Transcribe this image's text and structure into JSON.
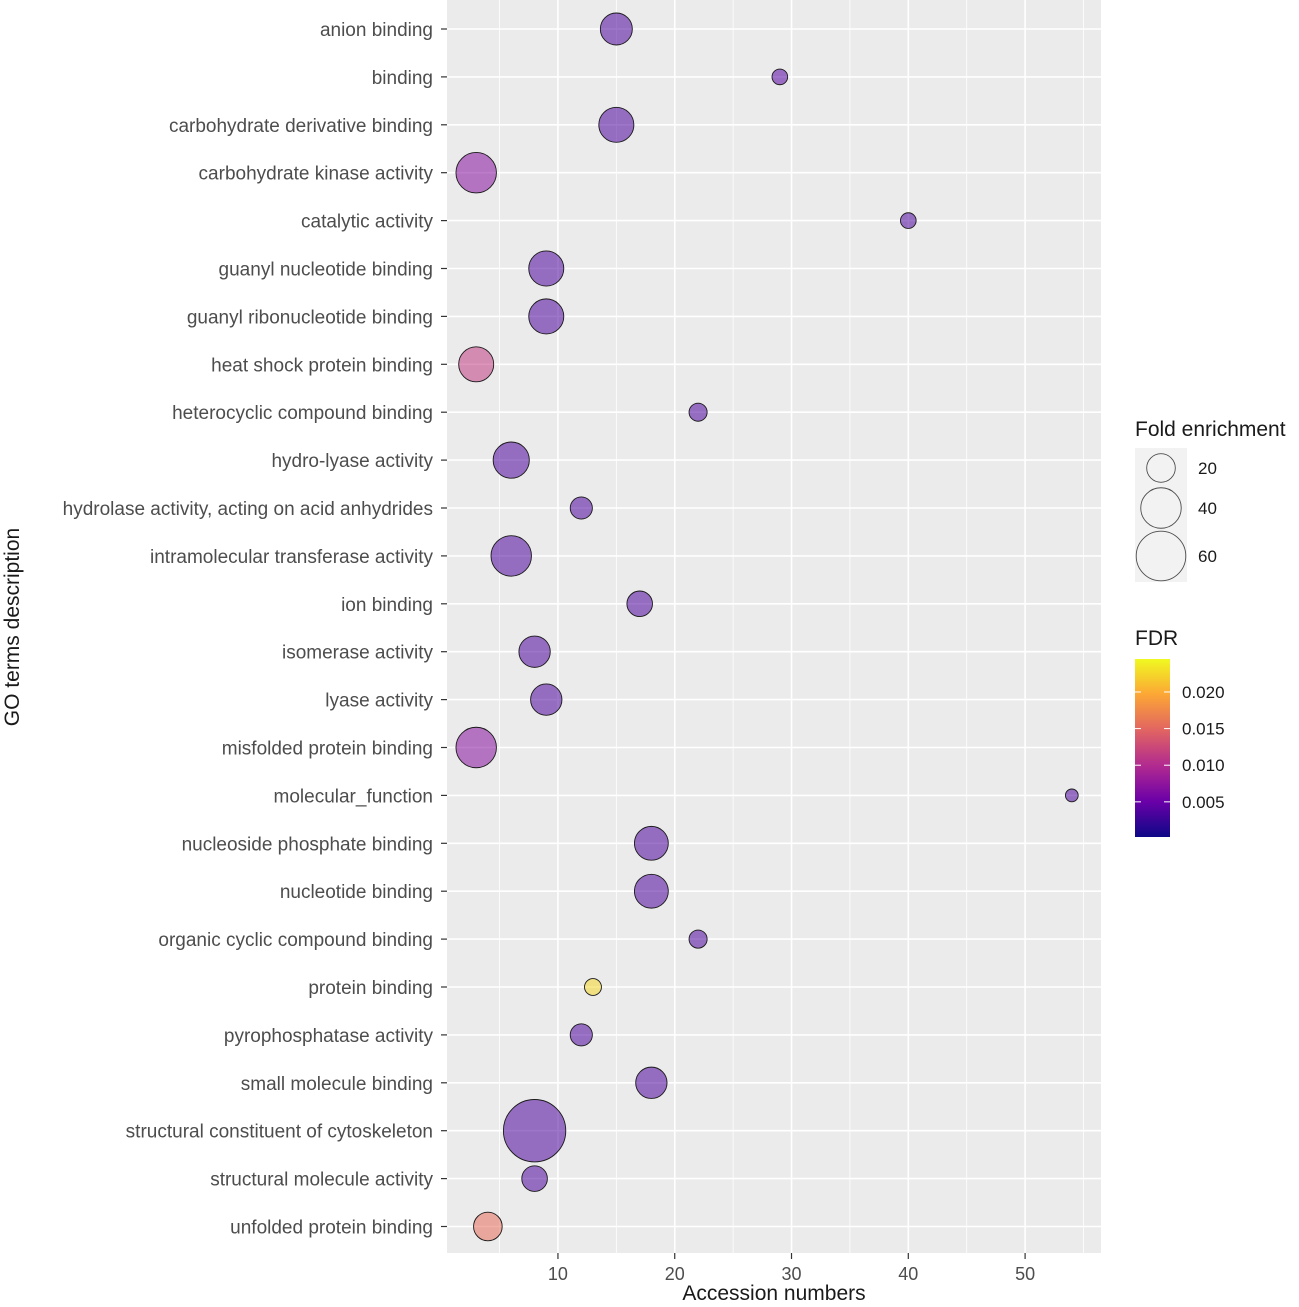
{
  "chart_data": {
    "type": "scatter",
    "title": "",
    "xlabel": "Accession numbers",
    "ylabel": "GO terms description",
    "xlim": [
      0.5,
      56.5
    ],
    "xticks": [
      10,
      20,
      30,
      40,
      50
    ],
    "xtick_labels": [
      "10",
      "20",
      "30",
      "40",
      "50"
    ],
    "grid": true,
    "points": [
      {
        "label": "anion binding",
        "x": 15,
        "fold": 25,
        "fdr": 0.0035
      },
      {
        "label": "binding",
        "x": 29,
        "fold": 6,
        "fdr": 0.004
      },
      {
        "label": "carbohydrate derivative binding",
        "x": 15,
        "fold": 30,
        "fdr": 0.0035
      },
      {
        "label": "carbohydrate kinase activity",
        "x": 3,
        "fold": 40,
        "fdr": 0.007
      },
      {
        "label": "catalytic activity",
        "x": 40,
        "fold": 6,
        "fdr": 0.0035
      },
      {
        "label": "guanyl nucleotide binding",
        "x": 9,
        "fold": 30,
        "fdr": 0.0035
      },
      {
        "label": "guanyl ribonucleotide binding",
        "x": 9,
        "fold": 30,
        "fdr": 0.0035
      },
      {
        "label": "heat shock protein binding",
        "x": 3,
        "fold": 30,
        "fdr": 0.0115
      },
      {
        "label": "heterocyclic compound binding",
        "x": 22,
        "fold": 8,
        "fdr": 0.0035
      },
      {
        "label": "hydro-lyase activity",
        "x": 6,
        "fold": 32,
        "fdr": 0.0035
      },
      {
        "label": "hydrolase activity, acting on acid anhydrides",
        "x": 12,
        "fold": 12,
        "fdr": 0.0035
      },
      {
        "label": "intramolecular transferase activity",
        "x": 6,
        "fold": 40,
        "fdr": 0.0035
      },
      {
        "label": "ion binding",
        "x": 17,
        "fold": 16,
        "fdr": 0.0035
      },
      {
        "label": "isomerase activity",
        "x": 8,
        "fold": 24,
        "fdr": 0.0035
      },
      {
        "label": "lyase activity",
        "x": 9,
        "fold": 24,
        "fdr": 0.0035
      },
      {
        "label": "misfolded protein binding",
        "x": 3,
        "fold": 40,
        "fdr": 0.007
      },
      {
        "label": "molecular_function",
        "x": 54,
        "fold": 4,
        "fdr": 0.0035
      },
      {
        "label": "nucleoside phosphate binding",
        "x": 18,
        "fold": 28,
        "fdr": 0.0035
      },
      {
        "label": "nucleotide binding",
        "x": 18,
        "fold": 28,
        "fdr": 0.0035
      },
      {
        "label": "organic cyclic compound binding",
        "x": 22,
        "fold": 8,
        "fdr": 0.0035
      },
      {
        "label": "protein binding",
        "x": 13,
        "fold": 7,
        "fdr": 0.0225
      },
      {
        "label": "pyrophosphatase activity",
        "x": 12,
        "fold": 12,
        "fdr": 0.0035
      },
      {
        "label": "small molecule binding",
        "x": 18,
        "fold": 24,
        "fdr": 0.0035
      },
      {
        "label": "structural constituent of cytoskeleton",
        "x": 8,
        "fold": 95,
        "fdr": 0.0035
      },
      {
        "label": "structural molecule activity",
        "x": 8,
        "fold": 16,
        "fdr": 0.0035
      },
      {
        "label": "unfolded protein binding",
        "x": 4,
        "fold": 20,
        "fdr": 0.0155
      }
    ],
    "size_legend": {
      "title": "Fold enrichment",
      "values": [
        20,
        40,
        60
      ],
      "labels": [
        "20",
        "40",
        "60"
      ]
    },
    "color_legend": {
      "title": "FDR",
      "range": [
        0.0002,
        0.0245
      ],
      "ticks": [
        0.005,
        0.01,
        0.015,
        0.02
      ],
      "tick_labels": [
        "0.005",
        "0.010",
        "0.015",
        "0.020"
      ],
      "palette": [
        "#0d0887",
        "#6a00a8",
        "#b12a90",
        "#e16462",
        "#fca636",
        "#f0f921"
      ]
    }
  }
}
